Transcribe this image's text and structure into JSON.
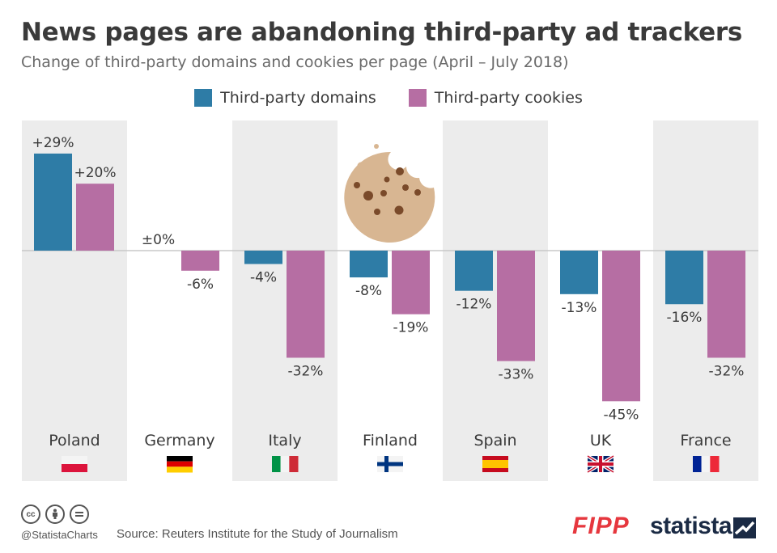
{
  "title": "News pages are abandoning third-party ad trackers",
  "subtitle": "Change of third-party domains and cookies per page (April – July 2018)",
  "colors": {
    "domains": "#2e7ca6",
    "cookies": "#b66ea3",
    "panel": "#ececec",
    "zero_line": "#c8c8c8"
  },
  "footer": {
    "handle": "@StatistaCharts",
    "source": "Source: Reuters Institute for the Study of Journalism",
    "fipp": "FIPP",
    "statista": "statista",
    "cc_icons": [
      "cc-icon",
      "by-icon",
      "nd-icon"
    ]
  },
  "chart_data": {
    "type": "bar",
    "categories": [
      "Poland",
      "Germany",
      "Italy",
      "Finland",
      "Spain",
      "UK",
      "France"
    ],
    "flags": [
      "flag-poland-icon",
      "flag-germany-icon",
      "flag-italy-icon",
      "flag-finland-icon",
      "flag-spain-icon",
      "flag-uk-icon",
      "flag-france-icon"
    ],
    "series": [
      {
        "name": "Third-party domains",
        "values": [
          29,
          0,
          -4,
          -8,
          -12,
          -13,
          -16
        ],
        "labels": [
          "+29%",
          "±0%",
          "-4%",
          "-8%",
          "-12%",
          "-13%",
          "-16%"
        ]
      },
      {
        "name": "Third-party cookies",
        "values": [
          20,
          -6,
          -32,
          -19,
          -33,
          -45,
          -32
        ],
        "labels": [
          "+20%",
          "-6%",
          "-32%",
          "-19%",
          "-33%",
          "-45%",
          "-32%"
        ]
      }
    ],
    "ylim": [
      -45,
      29
    ],
    "unit": "%"
  }
}
